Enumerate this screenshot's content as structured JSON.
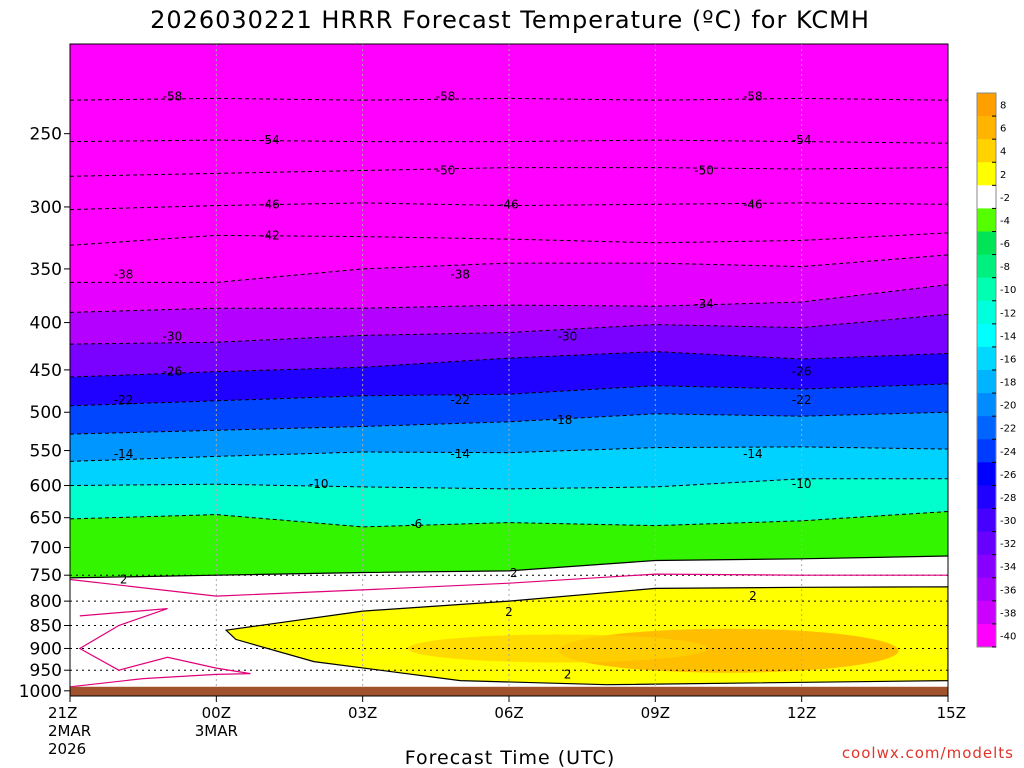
{
  "chart_data": {
    "type": "contour",
    "title": "2026030221 HRRR Forecast Temperature (ºC) for KCMH",
    "xlabel": "Forecast Time (UTC)",
    "ylabel": "",
    "credit": "coolwx.com/modelts",
    "x_ticks": [
      {
        "hour": 0,
        "lines": [
          "21Z",
          "2MAR",
          "2026"
        ]
      },
      {
        "hour": 3,
        "lines": [
          "00Z",
          "3MAR"
        ]
      },
      {
        "hour": 6,
        "lines": [
          "03Z"
        ]
      },
      {
        "hour": 9,
        "lines": [
          "06Z"
        ]
      },
      {
        "hour": 12,
        "lines": [
          "09Z"
        ]
      },
      {
        "hour": 15,
        "lines": [
          "12Z"
        ]
      },
      {
        "hour": 18,
        "lines": [
          "15Z"
        ]
      }
    ],
    "xlim": [
      0,
      18
    ],
    "y_scale": "log-pressure",
    "y_ticks": [
      250,
      300,
      350,
      400,
      450,
      500,
      550,
      600,
      650,
      700,
      750,
      800,
      850,
      900,
      950,
      1000
    ],
    "ylim": [
      1013,
      200
    ],
    "colorbar": {
      "ticks": [
        8,
        6,
        4,
        2,
        -2,
        -4,
        -6,
        -8,
        -10,
        -12,
        -14,
        -16,
        -18,
        -20,
        -22,
        -24,
        -26,
        -28,
        -30,
        -32,
        -34,
        -36,
        -38,
        -40
      ],
      "colors": [
        "#ffa000",
        "#ffb400",
        "#ffd200",
        "#ffff00",
        "#ffffff",
        "#55ff00",
        "#00e455",
        "#00f080",
        "#00ffb0",
        "#00ffdd",
        "#00ffff",
        "#00d8ff",
        "#00b4ff",
        "#008cff",
        "#0064ff",
        "#003cff",
        "#0000ff",
        "#2000ff",
        "#4600ff",
        "#6800ff",
        "#8800ff",
        "#a800ff",
        "#cc00ff",
        "#ff00ff"
      ]
    },
    "colors": {
      "ground": "#a0522d",
      "freezing_contour": "#e0007a",
      "background": "#ff00ff"
    },
    "ground_pressure": 990,
    "contours": [
      {
        "value": -58,
        "pressures": [
          230,
          229,
          230,
          229,
          230,
          229,
          230
        ],
        "label_at": [
          [
            2.1,
            -58
          ],
          [
            7.7,
            -58
          ],
          [
            14.0,
            -58
          ]
        ]
      },
      {
        "value": -54,
        "pressures": [
          255,
          254,
          255,
          255,
          254,
          255,
          256
        ],
        "label_at": [
          [
            4.1,
            -54
          ],
          [
            15.0,
            -54
          ]
        ]
      },
      {
        "value": -50,
        "pressures": [
          278,
          276,
          274,
          272,
          272,
          273,
          272
        ],
        "label_at": [
          [
            7.7,
            -50
          ],
          [
            13.0,
            -50
          ]
        ]
      },
      {
        "value": -46,
        "pressures": [
          302,
          299,
          297,
          299,
          298,
          297,
          298
        ],
        "label_at": [
          [
            4.1,
            -46
          ],
          [
            9.0,
            -46
          ],
          [
            14.0,
            -46
          ]
        ]
      },
      {
        "value": -42,
        "pressures": [
          330,
          322,
          323,
          325,
          328,
          326,
          320
        ],
        "label_at": [
          [
            4.1,
            -42
          ]
        ]
      },
      {
        "value": -38,
        "pressures": [
          362,
          362,
          350,
          345,
          345,
          348,
          338
        ],
        "label_at": [
          [
            1.1,
            -38
          ],
          [
            8.0,
            -38
          ]
        ]
      },
      {
        "value": -34,
        "pressures": [
          390,
          386,
          386,
          383,
          384,
          380,
          364
        ],
        "label_at": [
          [
            13.0,
            -34
          ]
        ]
      },
      {
        "value": -30,
        "pressures": [
          422,
          420,
          413,
          410,
          402,
          405,
          392
        ],
        "label_at": [
          [
            2.1,
            -30
          ],
          [
            10.2,
            -30
          ]
        ]
      },
      {
        "value": -26,
        "pressures": [
          458,
          452,
          447,
          437,
          430,
          438,
          432
        ],
        "label_at": [
          [
            2.1,
            -26
          ],
          [
            15.0,
            -26
          ]
        ]
      },
      {
        "value": -22,
        "pressures": [
          492,
          486,
          480,
          478,
          468,
          472,
          466
        ],
        "label_at": [
          [
            1.1,
            -22
          ],
          [
            8.0,
            -22
          ],
          [
            15.0,
            -22
          ]
        ]
      },
      {
        "value": -18,
        "pressures": [
          528,
          523,
          518,
          512,
          502,
          505,
          500
        ],
        "label_at": [
          [
            10.1,
            -18
          ]
        ]
      },
      {
        "value": -14,
        "pressures": [
          565,
          558,
          552,
          553,
          546,
          545,
          548
        ],
        "label_at": [
          [
            1.1,
            -14
          ],
          [
            8.0,
            -14
          ],
          [
            14.0,
            -14
          ]
        ]
      },
      {
        "value": -10,
        "pressures": [
          600,
          598,
          602,
          605,
          602,
          590,
          590
        ],
        "label_at": [
          [
            5.1,
            -10
          ],
          [
            15.0,
            -10
          ]
        ]
      },
      {
        "value": -6,
        "pressures": [
          652,
          645,
          665,
          658,
          663,
          655,
          640
        ],
        "label_at": [
          [
            7.1,
            -6
          ]
        ]
      }
    ],
    "label_positions_pressure": {
      "-58": 228,
      "-54": 254,
      "-50": 274,
      "-46": 298,
      "-42": 322,
      "-38": 355,
      "-34": 382,
      "-30": 414,
      "-26": 452,
      "-22": 485,
      "-18": 510,
      "-14": 555,
      "-10": 598,
      "-6": 660
    },
    "freezing_level_2C": [
      {
        "hour": 0,
        "pressure": 755
      },
      {
        "hour": 3,
        "pressure": 750
      },
      {
        "hour": 6,
        "pressure": 745
      },
      {
        "hour": 9,
        "pressure": 742
      },
      {
        "hour": 12,
        "pressure": 723
      },
      {
        "hour": 15,
        "pressure": 720
      },
      {
        "hour": 18,
        "pressure": 715
      }
    ],
    "warm_layer_2C": [
      {
        "hour": 3.2,
        "pressure": 860
      },
      {
        "hour": 6,
        "pressure": 820
      },
      {
        "hour": 9,
        "pressure": 800
      },
      {
        "hour": 12,
        "pressure": 775
      },
      {
        "hour": 15,
        "pressure": 773
      },
      {
        "hour": 18,
        "pressure": 772
      }
    ]
  }
}
